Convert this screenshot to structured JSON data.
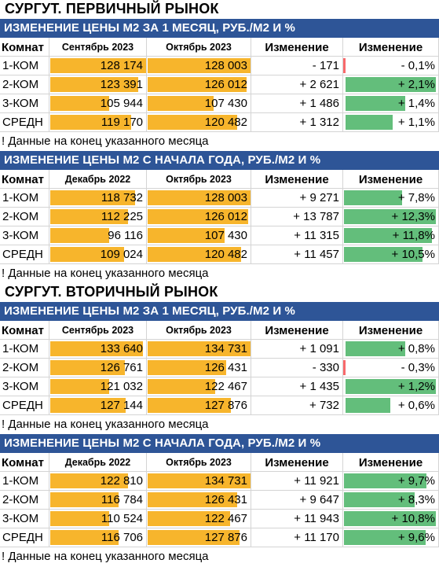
{
  "note": "! Данные на конец указанного месяца",
  "col_headers": {
    "rooms": "Комнат",
    "change": "Изменение"
  },
  "row_labels": [
    "1-КОМ",
    "2-КОМ",
    "3-КОМ",
    "СРЕДН"
  ],
  "colors": {
    "band": "#2e5597",
    "price_bar": "#f7b52c",
    "positive_bar": "#63be7b",
    "negative_bar": "#f8696b"
  },
  "sections": [
    {
      "title": "СУРГУТ. ПЕРВИЧНЫЙ РЫНОК",
      "tables": [
        {
          "band": "ИЗМЕНЕНИЕ ЦЕНЫ М2 ЗА 1 МЕСЯЦ, РУБ./М2 И %",
          "col_a": "Сентябрь 2023",
          "col_b": "Октябрь 2023",
          "rows": [
            {
              "a": "128 174",
              "b": "128 003",
              "abs": "- 171",
              "pct": "- 0,1%",
              "pct_value": -0.1
            },
            {
              "a": "123 391",
              "b": "126 012",
              "abs": "+ 2 621",
              "pct": "+ 2,1%",
              "pct_value": 2.1
            },
            {
              "a": "105 944",
              "b": "107 430",
              "abs": "+ 1 486",
              "pct": "+ 1,4%",
              "pct_value": 1.4
            },
            {
              "a": "119 170",
              "b": "120 482",
              "abs": "+ 1 312",
              "pct": "+ 1,1%",
              "pct_value": 1.1
            }
          ]
        },
        {
          "band": "ИЗМЕНЕНИЕ ЦЕНЫ М2 С НАЧАЛА ГОДА, РУБ./М2 И %",
          "col_a": "Декабрь 2022",
          "col_b": "Октябрь 2023",
          "rows": [
            {
              "a": "118 732",
              "b": "128 003",
              "abs": "+ 9 271",
              "pct": "+ 7,8%",
              "pct_value": 7.8
            },
            {
              "a": "112 225",
              "b": "126 012",
              "abs": "+ 13 787",
              "pct": "+ 12,3%",
              "pct_value": 12.3
            },
            {
              "a": "96 116",
              "b": "107 430",
              "abs": "+ 11 315",
              "pct": "+ 11,8%",
              "pct_value": 11.8
            },
            {
              "a": "109 024",
              "b": "120 482",
              "abs": "+ 11 457",
              "pct": "+ 10,5%",
              "pct_value": 10.5
            }
          ]
        }
      ]
    },
    {
      "title": "СУРГУТ. ВТОРИЧНЫЙ РЫНОК",
      "tables": [
        {
          "band": "ИЗМЕНЕНИЕ ЦЕНЫ М2 ЗА 1 МЕСЯЦ, РУБ./М2 И %",
          "col_a": "Сентябрь 2023",
          "col_b": "Октябрь 2023",
          "rows": [
            {
              "a": "133 640",
              "b": "134 731",
              "abs": "+ 1 091",
              "pct": "+ 0,8%",
              "pct_value": 0.8
            },
            {
              "a": "126 761",
              "b": "126 431",
              "abs": "- 330",
              "pct": "- 0,3%",
              "pct_value": -0.3
            },
            {
              "a": "121 032",
              "b": "122 467",
              "abs": "+ 1 435",
              "pct": "+ 1,2%",
              "pct_value": 1.2
            },
            {
              "a": "127 144",
              "b": "127 876",
              "abs": "+ 732",
              "pct": "+ 0,6%",
              "pct_value": 0.6
            }
          ]
        },
        {
          "band": "ИЗМЕНЕНИЕ ЦЕНЫ М2 С НАЧАЛА ГОДА, РУБ./М2 И %",
          "col_a": "Декабрь 2022",
          "col_b": "Октябрь 2023",
          "rows": [
            {
              "a": "122 810",
              "b": "134 731",
              "abs": "+ 11 921",
              "pct": "+ 9,7%",
              "pct_value": 9.7
            },
            {
              "a": "116 784",
              "b": "126 431",
              "abs": "+ 9 647",
              "pct": "+ 8,3%",
              "pct_value": 8.3
            },
            {
              "a": "110 524",
              "b": "122 467",
              "abs": "+ 11 943",
              "pct": "+ 10,8%",
              "pct_value": 10.8
            },
            {
              "a": "116 706",
              "b": "127 876",
              "abs": "+ 11 170",
              "pct": "+ 9,6%",
              "pct_value": 9.6
            }
          ]
        }
      ]
    }
  ]
}
